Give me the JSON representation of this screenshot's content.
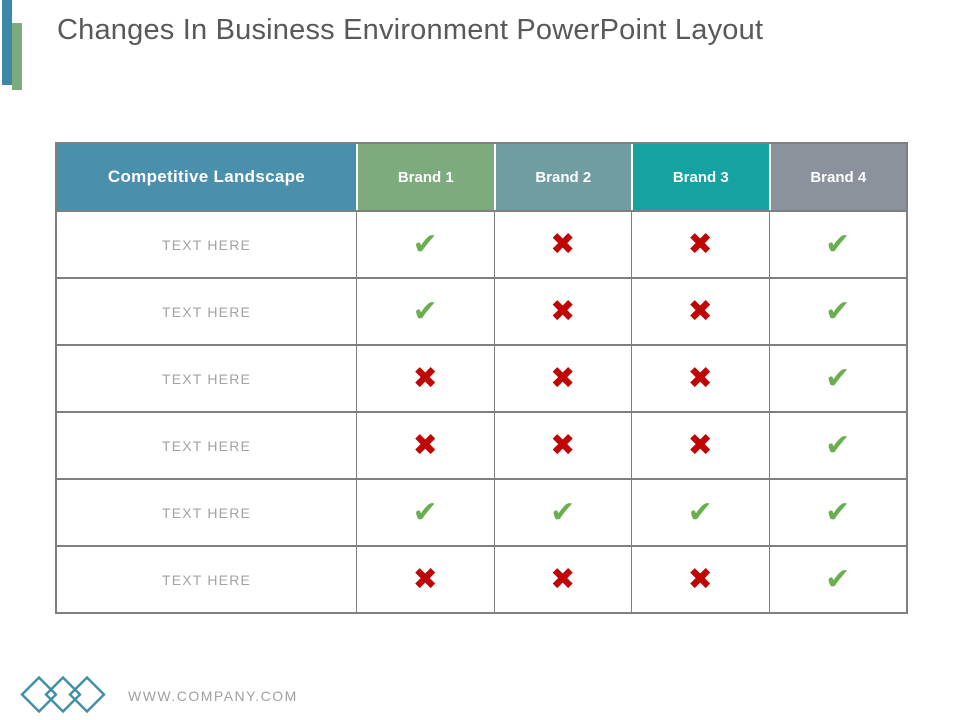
{
  "slide": {
    "title": "Changes In Business Environment PowerPoint Layout"
  },
  "colors": {
    "title_text": "#595959",
    "accent_teal": "#3D87A8",
    "accent_green": "#7CAC7C",
    "table_border": "#7F7F7F",
    "row_label_text": "#A3A3A3",
    "check": "#6BAE4F",
    "cross": "#C00505",
    "logo": "#3E8EA8",
    "footer_text": "#A0A0A0"
  },
  "table": {
    "header": [
      {
        "label": "Competitive Landscape",
        "bg": "#4A8FAC"
      },
      {
        "label": "Brand 1",
        "bg": "#7DAB7D"
      },
      {
        "label": "Brand 2",
        "bg": "#6F9DA2"
      },
      {
        "label": "Brand 3",
        "bg": "#17A2A2"
      },
      {
        "label": "Brand 4",
        "bg": "#8B929C"
      }
    ],
    "rows": [
      {
        "label": "TEXT HERE",
        "marks": [
          "check",
          "cross",
          "cross",
          "check"
        ]
      },
      {
        "label": "TEXT HERE",
        "marks": [
          "check",
          "cross",
          "cross",
          "check"
        ]
      },
      {
        "label": "TEXT HERE",
        "marks": [
          "cross",
          "cross",
          "cross",
          "check"
        ]
      },
      {
        "label": "TEXT HERE",
        "marks": [
          "cross",
          "cross",
          "cross",
          "check"
        ]
      },
      {
        "label": "TEXT HERE",
        "marks": [
          "check",
          "check",
          "check",
          "check"
        ]
      },
      {
        "label": "TEXT HERE",
        "marks": [
          "cross",
          "cross",
          "cross",
          "check"
        ]
      }
    ],
    "glyphs": {
      "check": "✔",
      "cross": "✖"
    }
  },
  "footer": {
    "url": "WWW.COMPANY.COM",
    "logo_icon": "overlapping-diamonds-icon"
  }
}
